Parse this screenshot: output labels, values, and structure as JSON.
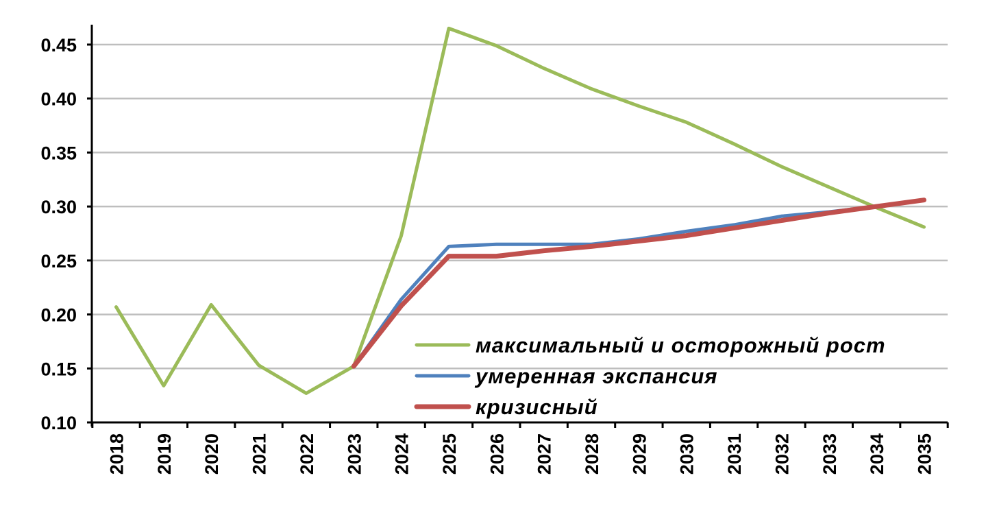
{
  "chart_data": {
    "type": "line",
    "x": [
      "2018",
      "2019",
      "2020",
      "2021",
      "2022",
      "2023",
      "2024",
      "2025",
      "2026",
      "2027",
      "2028",
      "2029",
      "2030",
      "2031",
      "2032",
      "2033",
      "2034",
      "2035"
    ],
    "ylim": [
      0.1,
      0.47
    ],
    "yticks": [
      "0.10",
      "0.15",
      "0.20",
      "0.25",
      "0.30",
      "0.35",
      "0.40",
      "0.45"
    ],
    "grid": "horizontal",
    "legend_position": "bottom-right",
    "series": [
      {
        "name": "максимальный и осторожный рост",
        "color": "#9BBB59",
        "values": [
          0.207,
          0.134,
          0.209,
          0.153,
          0.127,
          0.152,
          0.273,
          0.465,
          0.449,
          0.428,
          0.409,
          0.393,
          0.378,
          0.358,
          0.337,
          0.318,
          0.299,
          0.281
        ]
      },
      {
        "name": "умеренная экспансия",
        "color": "#4F81BD",
        "values": [
          null,
          null,
          null,
          null,
          null,
          0.152,
          0.214,
          0.263,
          0.265,
          0.265,
          0.265,
          0.27,
          0.277,
          0.283,
          0.291,
          0.295,
          0.3,
          0.306
        ]
      },
      {
        "name": "кризисный",
        "color": "#C0504D",
        "values": [
          null,
          null,
          null,
          null,
          null,
          0.152,
          0.208,
          0.254,
          0.254,
          0.259,
          0.263,
          0.268,
          0.273,
          0.28,
          0.287,
          0.294,
          0.3,
          0.306
        ]
      }
    ]
  }
}
